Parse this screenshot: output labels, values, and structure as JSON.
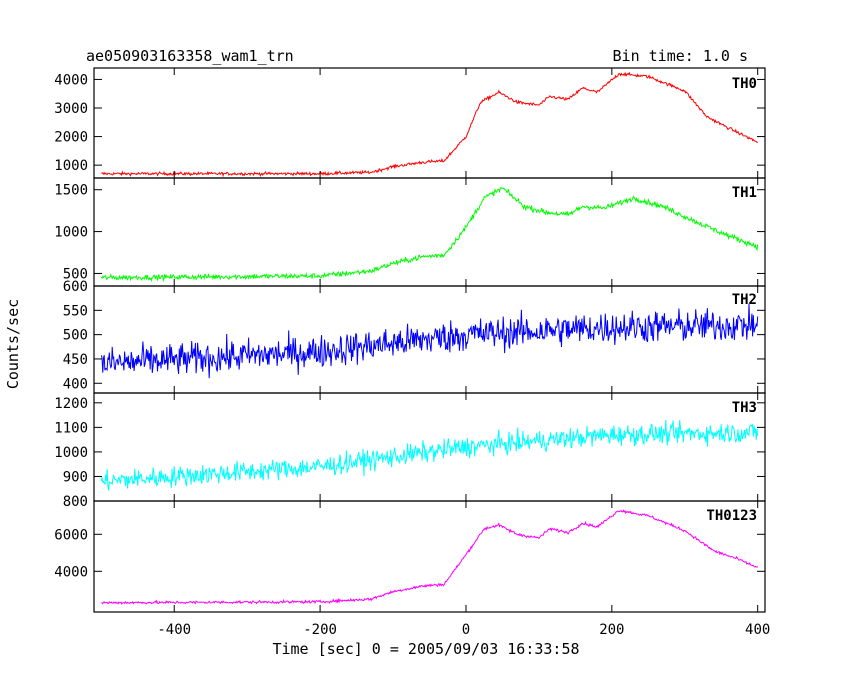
{
  "header": {
    "title": "ae050903163358_wam1_trn",
    "bin_time": "Bin time: 1.0 s"
  },
  "chart_data": {
    "type": "line",
    "xlabel": "Time [sec] 0 = 2005/09/03 16:33:58",
    "ylabel": "Counts/sec",
    "xlim": [
      -510,
      410
    ],
    "x_ticks": [
      -400,
      -200,
      0,
      200,
      400
    ],
    "x_start": -500,
    "x_end": 400,
    "panels": [
      {
        "name": "TH0",
        "color": "#ff0000",
        "ylim": [
          550,
          4400
        ],
        "y_ticks": [
          1000,
          2000,
          3000,
          4000
        ],
        "noise": 50,
        "profile": [
          [
            -500,
            700
          ],
          [
            -200,
            700
          ],
          [
            -130,
            750
          ],
          [
            -100,
            950
          ],
          [
            -60,
            1100
          ],
          [
            -30,
            1150
          ],
          [
            0,
            2000
          ],
          [
            20,
            3200
          ],
          [
            45,
            3550
          ],
          [
            70,
            3200
          ],
          [
            100,
            3100
          ],
          [
            115,
            3400
          ],
          [
            140,
            3300
          ],
          [
            160,
            3700
          ],
          [
            180,
            3550
          ],
          [
            210,
            4200
          ],
          [
            250,
            4100
          ],
          [
            300,
            3600
          ],
          [
            330,
            2700
          ],
          [
            360,
            2300
          ],
          [
            400,
            1800
          ]
        ]
      },
      {
        "name": "TH1",
        "color": "#00ff00",
        "ylim": [
          350,
          1640
        ],
        "y_ticks": [
          500,
          1000,
          1500
        ],
        "noise": 30,
        "profile": [
          [
            -500,
            450
          ],
          [
            -200,
            470
          ],
          [
            -130,
            530
          ],
          [
            -100,
            620
          ],
          [
            -60,
            700
          ],
          [
            -30,
            720
          ],
          [
            0,
            1050
          ],
          [
            25,
            1400
          ],
          [
            50,
            1520
          ],
          [
            80,
            1300
          ],
          [
            110,
            1230
          ],
          [
            140,
            1200
          ],
          [
            160,
            1300
          ],
          [
            190,
            1280
          ],
          [
            230,
            1400
          ],
          [
            270,
            1300
          ],
          [
            320,
            1100
          ],
          [
            360,
            950
          ],
          [
            400,
            820
          ]
        ]
      },
      {
        "name": "TH2",
        "color": "#0000ff",
        "ylim": [
          380,
          600
        ],
        "y_ticks": [
          400,
          450,
          500,
          550,
          600
        ],
        "noise": 32,
        "profile": [
          [
            -500,
            440
          ],
          [
            -200,
            465
          ],
          [
            0,
            500
          ],
          [
            200,
            515
          ],
          [
            400,
            520
          ]
        ]
      },
      {
        "name": "TH3",
        "color": "#00ffff",
        "ylim": [
          800,
          1240
        ],
        "y_ticks": [
          800,
          900,
          1000,
          1100,
          1200
        ],
        "noise": 40,
        "profile": [
          [
            -500,
            880
          ],
          [
            -200,
            940
          ],
          [
            0,
            1020
          ],
          [
            200,
            1070
          ],
          [
            400,
            1080
          ]
        ]
      },
      {
        "name": "TH0123",
        "color": "#ff00ff",
        "ylim": [
          1800,
          7800
        ],
        "y_ticks": [
          4000,
          6000
        ],
        "noise": 70,
        "profile": [
          [
            -500,
            2300
          ],
          [
            -200,
            2350
          ],
          [
            -130,
            2500
          ],
          [
            -100,
            2900
          ],
          [
            -60,
            3200
          ],
          [
            -30,
            3300
          ],
          [
            0,
            4900
          ],
          [
            25,
            6300
          ],
          [
            45,
            6500
          ],
          [
            70,
            6000
          ],
          [
            100,
            5800
          ],
          [
            115,
            6300
          ],
          [
            140,
            6100
          ],
          [
            160,
            6600
          ],
          [
            180,
            6400
          ],
          [
            210,
            7300
          ],
          [
            250,
            7000
          ],
          [
            300,
            6200
          ],
          [
            340,
            5100
          ],
          [
            370,
            4700
          ],
          [
            400,
            4200
          ]
        ]
      }
    ]
  }
}
